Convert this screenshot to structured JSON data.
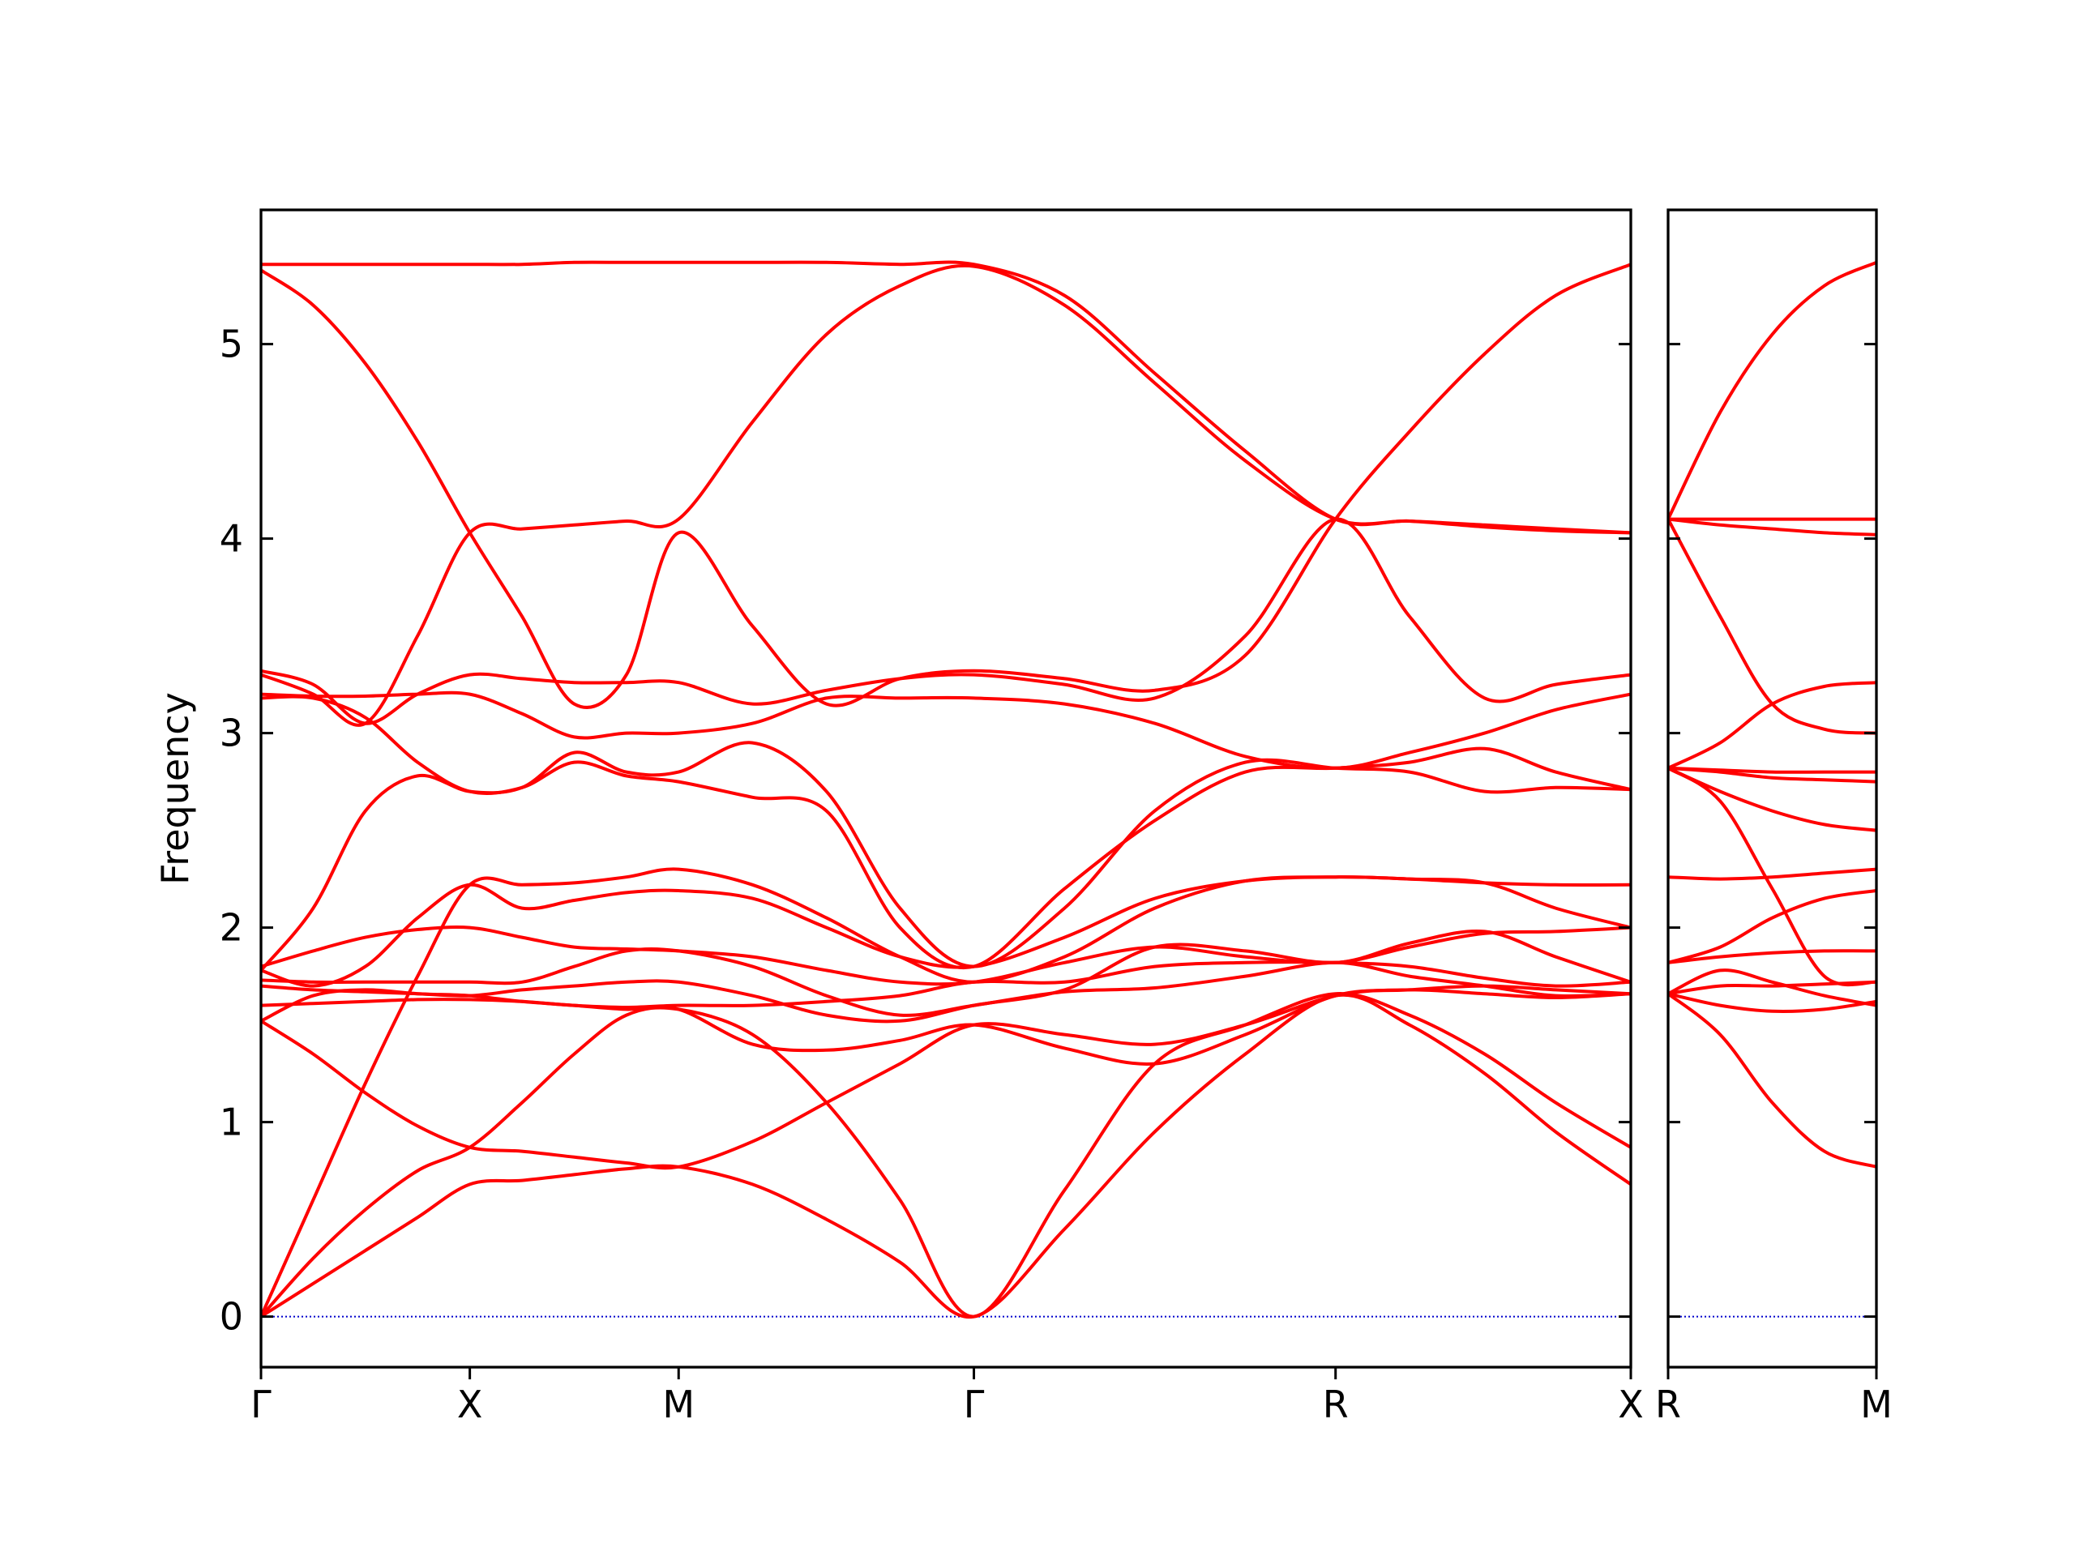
{
  "chart_data": [
    {
      "type": "line",
      "ylabel": "Frequency",
      "x": [
        0,
        0.125,
        0.25,
        0.375,
        0.5,
        0.625,
        0.75,
        0.875,
        1.0,
        1.177,
        1.354,
        1.53,
        1.707,
        1.924,
        2.14,
        2.357,
        2.573,
        2.75,
        2.93,
        3.1,
        3.28
      ],
      "xlim": [
        0,
        3.28
      ],
      "xticks": [
        {
          "value": 0,
          "label": "Γ"
        },
        {
          "value": 0.5,
          "label": "X"
        },
        {
          "value": 1.0,
          "label": "M"
        },
        {
          "value": 1.707,
          "label": "Γ"
        },
        {
          "value": 2.573,
          "label": "R"
        },
        {
          "value": 3.28,
          "label": "X"
        }
      ],
      "ylim": [
        -0.26,
        5.69
      ],
      "yticks": [
        0,
        1,
        2,
        3,
        4,
        5
      ],
      "zero_line_color": "#0000cc",
      "series": [
        {
          "color": "#ff0000",
          "values": [
            0,
            0.17,
            0.34,
            0.51,
            0.68,
            0.7,
            0.73,
            0.76,
            0.77,
            0.68,
            0.5,
            0.28,
            0,
            0.45,
            0.95,
            1.35,
            1.65,
            1.5,
            1.25,
            0.95,
            0.68
          ]
        },
        {
          "color": "#ff0000",
          "values": [
            0,
            0.3,
            0.55,
            0.75,
            0.87,
            1.1,
            1.35,
            1.55,
            1.58,
            1.45,
            1.1,
            0.6,
            0,
            0.65,
            1.3,
            1.5,
            1.66,
            1.55,
            1.35,
            1.1,
            0.87
          ]
        },
        {
          "color": "#ff0000",
          "values": [
            0,
            0.6,
            1.2,
            1.75,
            2.22,
            2.22,
            2.23,
            2.26,
            2.3,
            2.22,
            2.05,
            1.85,
            1.72,
            1.85,
            2.1,
            2.24,
            2.26,
            2.25,
            2.23,
            2.22,
            2.22
          ]
        },
        {
          "color": "#ff0000",
          "values": [
            1.52,
            1.35,
            1.15,
            0.98,
            0.87,
            0.85,
            0.82,
            0.79,
            0.77,
            0.9,
            1.1,
            1.3,
            1.5,
            1.45,
            1.4,
            1.5,
            1.65,
            1.68,
            1.66,
            1.64,
            1.66
          ]
        },
        {
          "color": "#ff0000",
          "values": [
            1.52,
            1.65,
            1.68,
            1.66,
            1.65,
            1.62,
            1.6,
            1.58,
            1.58,
            1.4,
            1.37,
            1.42,
            1.5,
            1.38,
            1.3,
            1.45,
            1.65,
            1.68,
            1.7,
            1.68,
            1.66
          ]
        },
        {
          "color": "#ff0000",
          "values": [
            1.6,
            1.61,
            1.62,
            1.63,
            1.63,
            1.62,
            1.6,
            1.59,
            1.6,
            1.6,
            1.62,
            1.65,
            1.72,
            1.72,
            1.8,
            1.82,
            1.82,
            1.8,
            1.74,
            1.7,
            1.72
          ]
        },
        {
          "color": "#ff0000",
          "values": [
            1.7,
            1.68,
            1.67,
            1.66,
            1.65,
            1.68,
            1.7,
            1.72,
            1.72,
            1.65,
            1.55,
            1.52,
            1.6,
            1.68,
            1.9,
            1.88,
            1.82,
            1.92,
            1.98,
            1.85,
            1.72
          ]
        },
        {
          "color": "#ff0000",
          "values": [
            1.73,
            1.72,
            1.72,
            1.72,
            1.72,
            1.72,
            1.8,
            1.88,
            1.88,
            1.8,
            1.65,
            1.55,
            1.6,
            1.67,
            1.69,
            1.75,
            1.82,
            1.75,
            1.7,
            1.65,
            1.66
          ]
        },
        {
          "color": "#ff0000",
          "values": [
            1.8,
            1.88,
            1.95,
            1.99,
            2.0,
            1.95,
            1.9,
            1.89,
            1.88,
            1.85,
            1.78,
            1.72,
            1.72,
            1.82,
            1.9,
            1.85,
            1.82,
            1.9,
            1.97,
            1.98,
            2.0
          ]
        },
        {
          "color": "#ff0000",
          "values": [
            1.78,
            1.7,
            1.8,
            2.05,
            2.22,
            2.1,
            2.14,
            2.18,
            2.19,
            2.15,
            2.0,
            1.85,
            1.8,
            1.95,
            2.15,
            2.24,
            2.26,
            2.25,
            2.23,
            2.1,
            2.0
          ]
        },
        {
          "color": "#ff0000",
          "values": [
            1.78,
            2.1,
            2.6,
            2.78,
            2.7,
            2.72,
            2.9,
            2.8,
            2.8,
            2.95,
            2.7,
            2.1,
            1.8,
            2.1,
            2.6,
            2.85,
            2.82,
            2.8,
            2.7,
            2.72,
            2.71
          ]
        },
        {
          "color": "#ff0000",
          "values": [
            3.18,
            3.18,
            3.08,
            2.85,
            2.7,
            2.72,
            2.85,
            2.78,
            2.75,
            2.67,
            2.6,
            2.0,
            1.8,
            2.2,
            2.55,
            2.8,
            2.82,
            2.85,
            2.92,
            2.8,
            2.71
          ]
        },
        {
          "color": "#ff0000",
          "values": [
            3.2,
            3.19,
            3.19,
            3.2,
            3.2,
            3.1,
            2.98,
            3.0,
            3.0,
            3.05,
            3.18,
            3.18,
            3.18,
            3.15,
            3.05,
            2.88,
            2.82,
            2.9,
            3.0,
            3.12,
            3.2
          ]
        },
        {
          "color": "#ff0000",
          "values": [
            3.32,
            3.25,
            3.05,
            3.2,
            3.3,
            3.28,
            3.26,
            3.26,
            3.26,
            3.15,
            3.22,
            3.28,
            3.3,
            3.25,
            3.18,
            3.5,
            4.1,
            3.6,
            3.18,
            3.25,
            3.3
          ]
        },
        {
          "color": "#ff0000",
          "values": [
            3.3,
            3.2,
            3.05,
            3.5,
            4.03,
            4.05,
            4.07,
            4.09,
            4.1,
            4.6,
            5.05,
            5.3,
            5.4,
            5.2,
            4.8,
            4.4,
            4.1,
            4.09,
            4.07,
            4.05,
            4.03
          ]
        },
        {
          "color": "#ff0000",
          "values": [
            5.38,
            5.2,
            4.9,
            4.5,
            4.03,
            3.6,
            3.15,
            3.3,
            4.03,
            3.55,
            3.15,
            3.28,
            3.32,
            3.28,
            3.22,
            3.4,
            4.1,
            4.55,
            4.95,
            5.25,
            5.41
          ]
        },
        {
          "color": "#ff0000",
          "values": [
            5.41,
            5.41,
            5.41,
            5.41,
            5.41,
            5.41,
            5.42,
            5.42,
            5.42,
            5.42,
            5.42,
            5.41,
            5.41,
            5.25,
            4.85,
            4.45,
            4.1,
            4.09,
            4.06,
            4.04,
            4.03
          ]
        }
      ]
    },
    {
      "type": "line",
      "x": [
        0,
        0.125,
        0.25,
        0.375,
        0.5
      ],
      "xlim": [
        0,
        0.5
      ],
      "xticks": [
        {
          "value": 0,
          "label": "R"
        },
        {
          "value": 0.5,
          "label": "M"
        }
      ],
      "ylim": [
        -0.26,
        5.69
      ],
      "yticks": [
        0,
        1,
        2,
        3,
        4,
        5
      ],
      "show_ytick_labels": false,
      "zero_line_color": "#0000cc",
      "series": [
        {
          "color": "#ff0000",
          "values": [
            4.1,
            4.65,
            5.05,
            5.3,
            5.42
          ]
        },
        {
          "color": "#ff0000",
          "values": [
            4.1,
            4.1,
            4.1,
            4.1,
            4.1
          ]
        },
        {
          "color": "#ff0000",
          "values": [
            4.1,
            4.07,
            4.05,
            4.03,
            4.02
          ]
        },
        {
          "color": "#ff0000",
          "values": [
            4.1,
            3.6,
            3.15,
            3.02,
            3.0
          ]
        },
        {
          "color": "#ff0000",
          "values": [
            2.82,
            2.95,
            3.15,
            3.24,
            3.26
          ]
        },
        {
          "color": "#ff0000",
          "values": [
            2.82,
            2.81,
            2.8,
            2.8,
            2.8
          ]
        },
        {
          "color": "#ff0000",
          "values": [
            2.82,
            2.8,
            2.77,
            2.76,
            2.75
          ]
        },
        {
          "color": "#ff0000",
          "values": [
            2.82,
            2.7,
            2.6,
            2.53,
            2.5
          ]
        },
        {
          "color": "#ff0000",
          "values": [
            2.82,
            2.65,
            2.2,
            1.75,
            1.72
          ]
        },
        {
          "color": "#ff0000",
          "values": [
            2.26,
            2.25,
            2.26,
            2.28,
            2.3
          ]
        },
        {
          "color": "#ff0000",
          "values": [
            1.82,
            1.9,
            2.05,
            2.15,
            2.19
          ]
        },
        {
          "color": "#ff0000",
          "values": [
            1.82,
            1.85,
            1.87,
            1.88,
            1.88
          ]
        },
        {
          "color": "#ff0000",
          "values": [
            1.66,
            1.78,
            1.72,
            1.65,
            1.6
          ]
        },
        {
          "color": "#ff0000",
          "values": [
            1.66,
            1.7,
            1.7,
            1.71,
            1.72
          ]
        },
        {
          "color": "#ff0000",
          "values": [
            1.66,
            1.6,
            1.57,
            1.58,
            1.62
          ]
        },
        {
          "color": "#ff0000",
          "values": [
            1.66,
            1.45,
            1.1,
            0.85,
            0.77
          ]
        }
      ]
    }
  ]
}
